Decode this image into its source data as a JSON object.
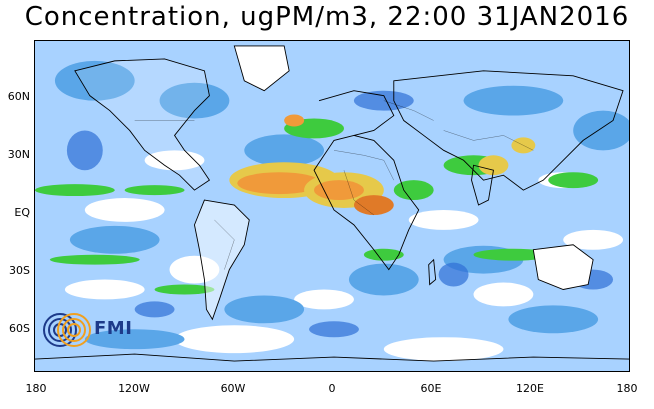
{
  "title": "Concentration, ugPM/m3, 22:00 31JAN2016",
  "map": {
    "lat_labels": [
      "60N",
      "30N",
      "EQ",
      "30S",
      "60S"
    ],
    "lon_labels": [
      "180",
      "120W",
      "60W",
      "0",
      "60E",
      "120E",
      "180"
    ],
    "palette": {
      "low_blue": "#5aa6e8",
      "light_blue": "#a8d2ff",
      "mid_blue": "#2f6fd6",
      "green": "#3ecb3e",
      "light_green": "#9be07a",
      "yellow": "#e6c94a",
      "orange": "#f09a3a",
      "dark_orange": "#e07a28"
    },
    "projection": "equirectangular"
  },
  "logo": {
    "text": "FMI",
    "colors": [
      "#1d3a8a",
      "#f0a020"
    ]
  }
}
